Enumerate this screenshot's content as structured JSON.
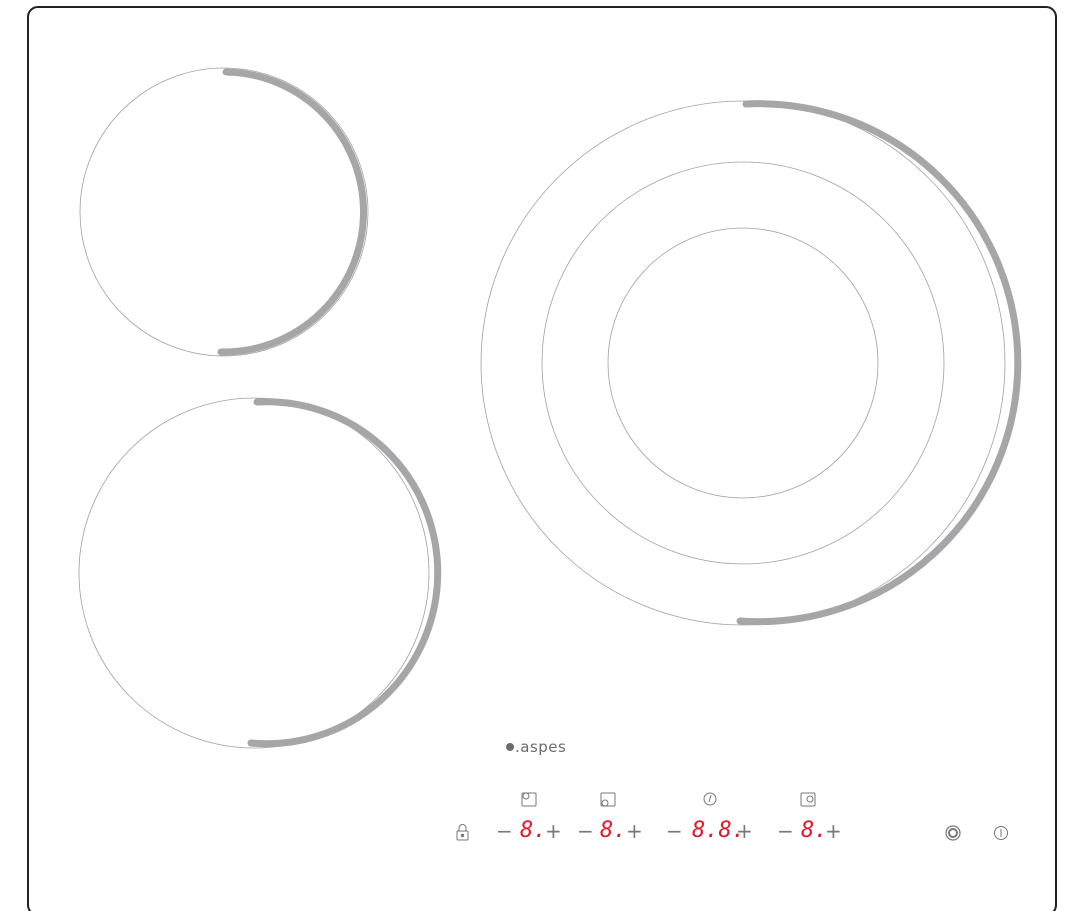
{
  "brand": {
    "name": ".aspes"
  },
  "zones": [
    {
      "name": "rear-left",
      "type": "single"
    },
    {
      "name": "front-left",
      "type": "single"
    },
    {
      "name": "right",
      "type": "triple"
    }
  ],
  "controls": {
    "lock_icon": "lock-icon",
    "zone_rear_left": {
      "icon": "zone-rear-left-icon",
      "minus": "−",
      "display": "8.",
      "plus": "+"
    },
    "zone_front_left": {
      "icon": "zone-front-left-icon",
      "minus": "−",
      "display": "8.",
      "plus": "+"
    },
    "timer": {
      "icon": "timer-icon",
      "minus": "−",
      "display": "8.8.",
      "plus": "+"
    },
    "zone_right": {
      "icon": "zone-right-icon",
      "minus": "−",
      "display": "8.",
      "plus": "+"
    },
    "zone_select_icon": "zone-select-icon",
    "power_icon": "power-icon"
  },
  "colors": {
    "digit": "#e4172e",
    "ring": "#a6a6a8",
    "outline": "#222222"
  }
}
